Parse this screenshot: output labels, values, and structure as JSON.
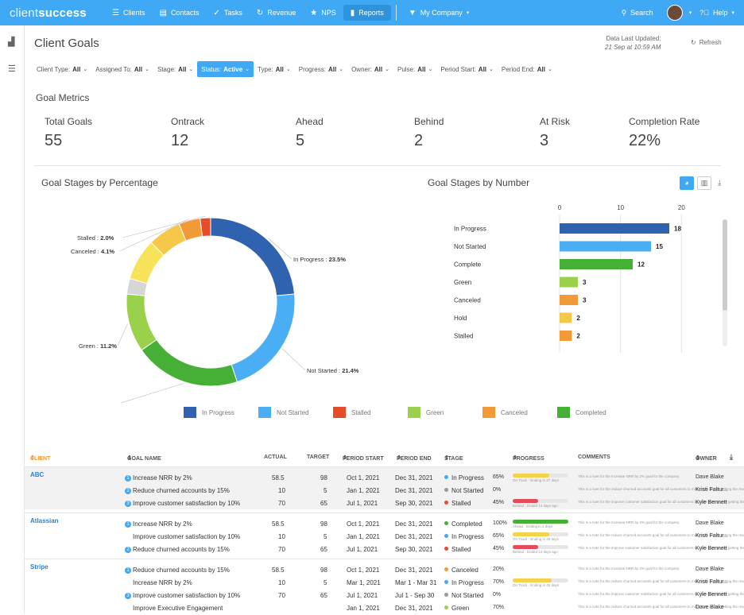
{
  "app": {
    "logo_light": "client",
    "logo_bold": "success"
  },
  "nav": [
    {
      "icon": "☰",
      "label": "Clients"
    },
    {
      "icon": "▤",
      "label": "Contacts"
    },
    {
      "icon": "✓",
      "label": "Tasks"
    },
    {
      "icon": "↻",
      "label": "Revenue"
    },
    {
      "icon": "★",
      "label": "NPS"
    },
    {
      "icon": "▮",
      "label": "Reports"
    }
  ],
  "company": {
    "icon": "▼",
    "label": "My Company"
  },
  "search": {
    "label": "Search"
  },
  "help": {
    "label": "Help"
  },
  "page": {
    "title": "Client Goals",
    "updated_label": "Data Last Updated:",
    "updated_time": "21 Sep at 10:59 AM",
    "refresh": "Refresh"
  },
  "filters": [
    {
      "label": "Client Type:",
      "value": "All"
    },
    {
      "label": "Assigned To:",
      "value": "All"
    },
    {
      "label": "Stage:",
      "value": "All"
    },
    {
      "label": "Status:",
      "value": "Active"
    },
    {
      "label": "Type:",
      "value": "All"
    },
    {
      "label": "Progress:",
      "value": "All"
    },
    {
      "label": "Owner:",
      "value": "All"
    },
    {
      "label": "Pulse:",
      "value": "All"
    },
    {
      "label": "Period Start:",
      "value": "All"
    },
    {
      "label": "Period End:",
      "value": "All"
    }
  ],
  "metrics": {
    "title": "Goal Metrics",
    "items": [
      {
        "label": "Total Goals",
        "value": "55"
      },
      {
        "label": "Ontrack",
        "value": "12"
      },
      {
        "label": "Ahead",
        "value": "5"
      },
      {
        "label": "Behind",
        "value": "2"
      },
      {
        "label": "At Risk",
        "value": "3"
      },
      {
        "label": "Completion Rate",
        "value": "22%"
      }
    ]
  },
  "colors": {
    "in_progress": "#2f63b0",
    "not_started": "#4aaef5",
    "stalled": "#e64b2a",
    "green": "#9ad14b",
    "canceled": "#f29a38",
    "complete": "#45b035",
    "hold": "#f5c84a",
    "unlabeled_yellow": "#f7e35a",
    "grey": "#d6d6d6",
    "accent": "#3fa9f5"
  },
  "donut": {
    "title": "Goal Stages by Percentage",
    "slices": [
      {
        "value": 23.5,
        "color": "#2f63b0",
        "label": "In Progress",
        "pct": "23.5%"
      },
      {
        "value": 21.4,
        "color": "#4aaef5",
        "label": "Not Started",
        "pct": "21.4%"
      },
      {
        "value": 20.4,
        "color": "#45b035",
        "label": "Complete",
        "pct": "20.4%"
      },
      {
        "value": 11.2,
        "color": "#9ad14b",
        "label": "Green",
        "pct": "11.2%"
      },
      {
        "value": 3.0,
        "color": "#d6d6d6",
        "label": "",
        "pct": ""
      },
      {
        "value": 8.0,
        "color": "#f7e35a",
        "label": "",
        "pct": ""
      },
      {
        "value": 6.4,
        "color": "#f5c84a",
        "label": "",
        "pct": ""
      },
      {
        "value": 4.1,
        "color": "#f29a38",
        "label": "Canceled",
        "pct": "4.1%"
      },
      {
        "value": 2.0,
        "color": "#e64b2a",
        "label": "Stalled",
        "pct": "2.0%"
      }
    ]
  },
  "legend": [
    {
      "label": "In Progress",
      "color": "#2f63b0"
    },
    {
      "label": "Not Started",
      "color": "#4aaef5"
    },
    {
      "label": "Stalled",
      "color": "#e64b2a"
    },
    {
      "label": "Green",
      "color": "#9ad14b"
    },
    {
      "label": "Canceled",
      "color": "#f29a38"
    },
    {
      "label": "Completed",
      "color": "#45b035"
    }
  ],
  "chart_data": {
    "type": "bar",
    "title": "Goal Stages by Number",
    "orientation": "horizontal",
    "categories": [
      "In Progress",
      "Not Started",
      "Complete",
      "Green",
      "Canceled",
      "Hold",
      "Stalled"
    ],
    "values": [
      18,
      15,
      12,
      3,
      3,
      2,
      2
    ],
    "colors": [
      "#2f63b0",
      "#4aaef5",
      "#45b035",
      "#9ad14b",
      "#f29a38",
      "#f5c84a",
      "#f29a38"
    ],
    "xlim": [
      0,
      30
    ],
    "xticks": [
      "0",
      "10",
      "20",
      "30"
    ],
    "grid": true
  },
  "table": {
    "headers": {
      "client": "CLIENT",
      "goal": "GOAL NAME",
      "actual": "ACTUAL",
      "target": "TARGET",
      "start": "PERIOD START",
      "end": "PERIOD END",
      "stage": "STAGE",
      "progress": "PROGRESS",
      "comments": "COMMENTS",
      "owner": "OWNER"
    },
    "groups": [
      {
        "client": "ABC",
        "rows": [
          {
            "badge": "1",
            "goal": "Increase NRR by 2%",
            "actual": "58.5",
            "target": "98",
            "start": "Oct 1, 2021",
            "end": "Dec 31, 2021",
            "stage": "In Progress",
            "stage_color": "#3fa9f5",
            "pct": "65%",
            "fill": 0.65,
            "fill_color": "#f5d24a",
            "note": "On Track · Ending in 27 days",
            "comment": "This is a note for the Increase NRR by 2% goal for the company.",
            "owner": "Dave Blake"
          },
          {
            "badge": "2",
            "goal": "Reduce churned accounts by 15%",
            "actual": "10",
            "target": "5",
            "start": "Jan 1, 2021",
            "end": "Dec 31, 2021",
            "stage": "Not Started",
            "stage_color": "#999999",
            "pct": "0%",
            "fill": 0,
            "fill_color": "#cccccc",
            "note": "",
            "comment": "This is a note for the reduce churned accounts goal for all customers to make sure we are getting the revenue we...",
            "owner": "Kristi Faltur..."
          },
          {
            "badge": "3",
            "goal": "Improve customer satisfaction by 10%",
            "actual": "70",
            "target": "65",
            "start": "Jul 1, 2021",
            "end": "Sep 30, 2021",
            "stage": "Stalled",
            "stage_color": "#e64b2a",
            "pct": "45%",
            "fill": 0.45,
            "fill_color": "#e64b5a",
            "note": "Behind · Ended 14 days ago",
            "comment": "This is a note for the improve customer satisfaction goal for all customers to make sure we are getting the revenue we...",
            "owner": "Kyle Bennett"
          }
        ]
      },
      {
        "client": "Atlassian",
        "rows": [
          {
            "badge": "1",
            "goal": "Increase NRR by 2%",
            "actual": "58.5",
            "target": "98",
            "start": "Oct 1, 2021",
            "end": "Dec 31, 2021",
            "stage": "Completed",
            "stage_color": "#45b035",
            "pct": "100%",
            "fill": 1.0,
            "fill_color": "#45b035",
            "note": "Ahead · Ending in 3 days",
            "comment": "This is a note for the Increase NRR by 2% goal for the company.",
            "owner": "Dave Blake"
          },
          {
            "badge": "",
            "goal": "Improve customer satisfaction by 10%",
            "actual": "10",
            "target": "5",
            "start": "Jan 1, 2021",
            "end": "Dec 31, 2021",
            "stage": "In Progress",
            "stage_color": "#3fa9f5",
            "pct": "65%",
            "fill": 0.65,
            "fill_color": "#f5d24a",
            "note": "On Track · Ending in 45 days",
            "comment": "This is a note for the reduce churned accounts goal for all customers to make sure we are getting the revenue we...",
            "owner": "Kristi Faltur..."
          },
          {
            "badge": "2",
            "goal": "Reduce churned accounts by 15%",
            "actual": "70",
            "target": "65",
            "start": "Jul 1, 2021",
            "end": "Sep 30, 2021",
            "stage": "Stalled",
            "stage_color": "#e64b2a",
            "pct": "45%",
            "fill": 0.45,
            "fill_color": "#e64b5a",
            "note": "Behind · Ended 14 days ago",
            "comment": "This is a note for the improve customer satisfaction goal for all customers to make sure we are getting the revenue we...",
            "owner": "Kyle Bennett"
          }
        ]
      },
      {
        "client": "Stripe",
        "rows": [
          {
            "badge": "1",
            "goal": "Reduce churned accounts by 15%",
            "actual": "58.5",
            "target": "98",
            "start": "Oct 1, 2021",
            "end": "Dec 31, 2021",
            "stage": "Canceled",
            "stage_color": "#f29a38",
            "pct": "20%",
            "fill": 0,
            "fill_color": "#cccccc",
            "note": "",
            "comment": "This is a note for the Increase NRR by 2% goal for the company.",
            "owner": "Dave Blake"
          },
          {
            "badge": "",
            "goal": "Increase NRR by 2%",
            "actual": "10",
            "target": "5",
            "start": "Mar 1, 2021",
            "end": "Mar 1 - Mar 31",
            "stage": "In Progress",
            "stage_color": "#3fa9f5",
            "pct": "70%",
            "fill": 0.7,
            "fill_color": "#f5d24a",
            "note": "On Track · Ending in 45 days",
            "comment": "This is a note for the reduce churned accounts goal for all customers to make sure we are getting the revenue we...",
            "owner": "Kristi Faltur..."
          },
          {
            "badge": "3",
            "goal": "Improve customer satisfaction by 10%",
            "actual": "70",
            "target": "65",
            "start": "Jul 1, 2021",
            "end": "Jul 1 - Sep 30",
            "stage": "Not Started",
            "stage_color": "#999999",
            "pct": "0%",
            "fill": 0,
            "fill_color": "#cccccc",
            "note": "",
            "comment": "This is a note for the improve customer satisfaction goal for all customers to make sure we are getting the revenue we...",
            "owner": "Kyle Bennett"
          },
          {
            "badge": "",
            "goal": "Improve Executive Engagement",
            "actual": "",
            "target": "",
            "start": "Jan 1, 2021",
            "end": "Dec 31, 2021",
            "stage": "Green",
            "stage_color": "#9ad14b",
            "pct": "70%",
            "fill": 0,
            "fill_color": "#cccccc",
            "note": "",
            "comment": "This is a note for the reduce churned accounts goal for all customers to make sure we are getting the revenue we...",
            "owner": "Dave Blake"
          }
        ]
      }
    ]
  }
}
